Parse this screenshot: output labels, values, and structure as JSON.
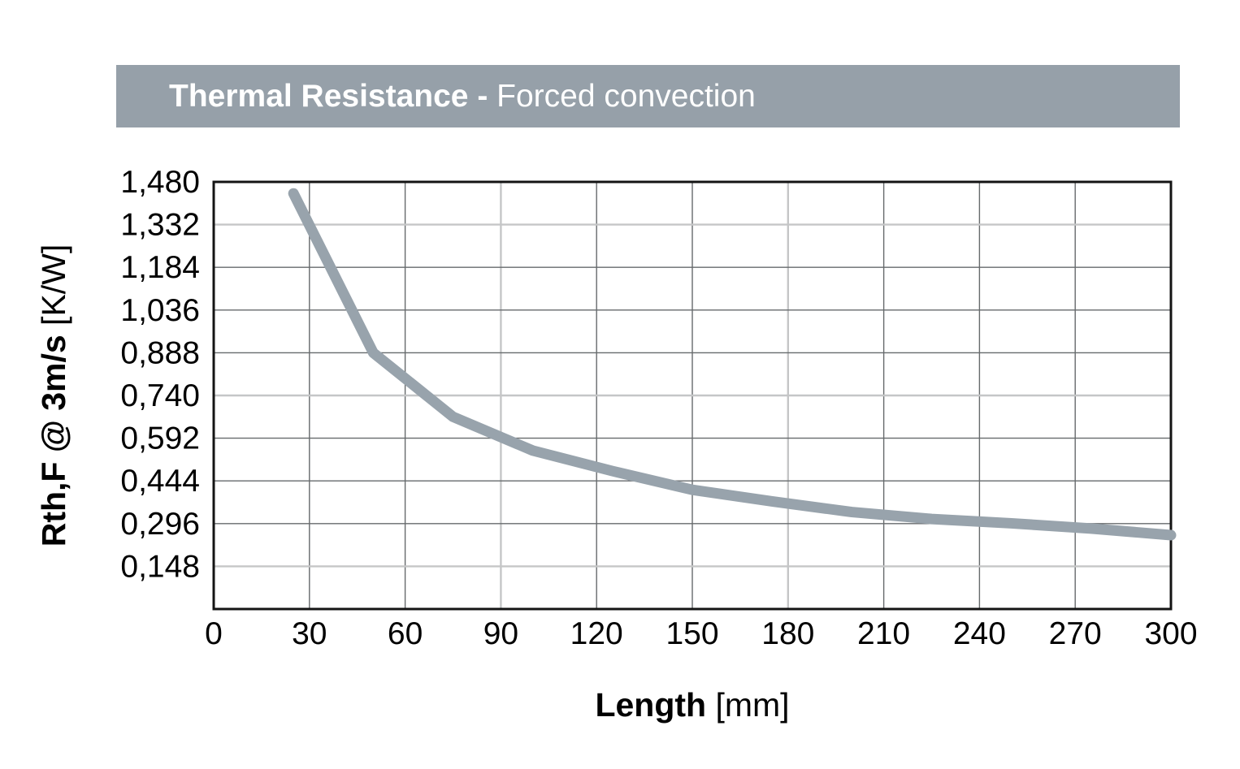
{
  "banner": {
    "title_bold": "Thermal Resistance - ",
    "title_regular": "Forced convection",
    "background": "#96a0a9",
    "text_color": "#ffffff"
  },
  "chart_data": {
    "type": "line",
    "title": "Thermal Resistance - Forced convection",
    "xlabel_bold": "Length ",
    "xlabel_regular": "[mm]",
    "ylabel_bold": "Rth,F @ 3m/s ",
    "ylabel_regular": "[K/W]",
    "xlim": [
      0,
      300
    ],
    "ylim": [
      0,
      1.48
    ],
    "grid": true,
    "legend_position": "none",
    "x_ticks": [
      {
        "label": "0",
        "value": 0,
        "grid": "none"
      },
      {
        "label": "30",
        "value": 30,
        "grid": "dark"
      },
      {
        "label": "60",
        "value": 60,
        "grid": "dark"
      },
      {
        "label": "90",
        "value": 90,
        "grid": "light"
      },
      {
        "label": "120",
        "value": 120,
        "grid": "dark"
      },
      {
        "label": "150",
        "value": 150,
        "grid": "dark"
      },
      {
        "label": "180",
        "value": 180,
        "grid": "light"
      },
      {
        "label": "210",
        "value": 210,
        "grid": "dark"
      },
      {
        "label": "240",
        "value": 240,
        "grid": "dark"
      },
      {
        "label": "270",
        "value": 270,
        "grid": "dark"
      },
      {
        "label": "300",
        "value": 300,
        "grid": "none"
      }
    ],
    "y_ticks": [
      {
        "label": "1,480",
        "value": 1.48,
        "grid": "none"
      },
      {
        "label": "1,332",
        "value": 1.332,
        "grid": "light"
      },
      {
        "label": "1,184",
        "value": 1.184,
        "grid": "dark"
      },
      {
        "label": "1,036",
        "value": 1.036,
        "grid": "dark"
      },
      {
        "label": "0,888",
        "value": 0.888,
        "grid": "dark"
      },
      {
        "label": "0,740",
        "value": 0.74,
        "grid": "light"
      },
      {
        "label": "0,592",
        "value": 0.592,
        "grid": "dark"
      },
      {
        "label": "0,444",
        "value": 0.444,
        "grid": "dark"
      },
      {
        "label": "0,296",
        "value": 0.296,
        "grid": "dark"
      },
      {
        "label": "0,148",
        "value": 0.148,
        "grid": "light"
      }
    ],
    "series": [
      {
        "name": "Rth,F @ 3m/s",
        "x": [
          25,
          50,
          75,
          100,
          125,
          150,
          175,
          200,
          225,
          250,
          275,
          300
        ],
        "y": [
          1.44,
          0.888,
          0.666,
          0.549,
          0.478,
          0.413,
          0.373,
          0.336,
          0.312,
          0.297,
          0.279,
          0.256
        ]
      }
    ],
    "colors": {
      "curve": "#98a3ac",
      "grid_dark": "#666a6c",
      "grid_light": "#c5c6c7",
      "plot_border": "#141414",
      "tick_text": "#000000"
    }
  }
}
